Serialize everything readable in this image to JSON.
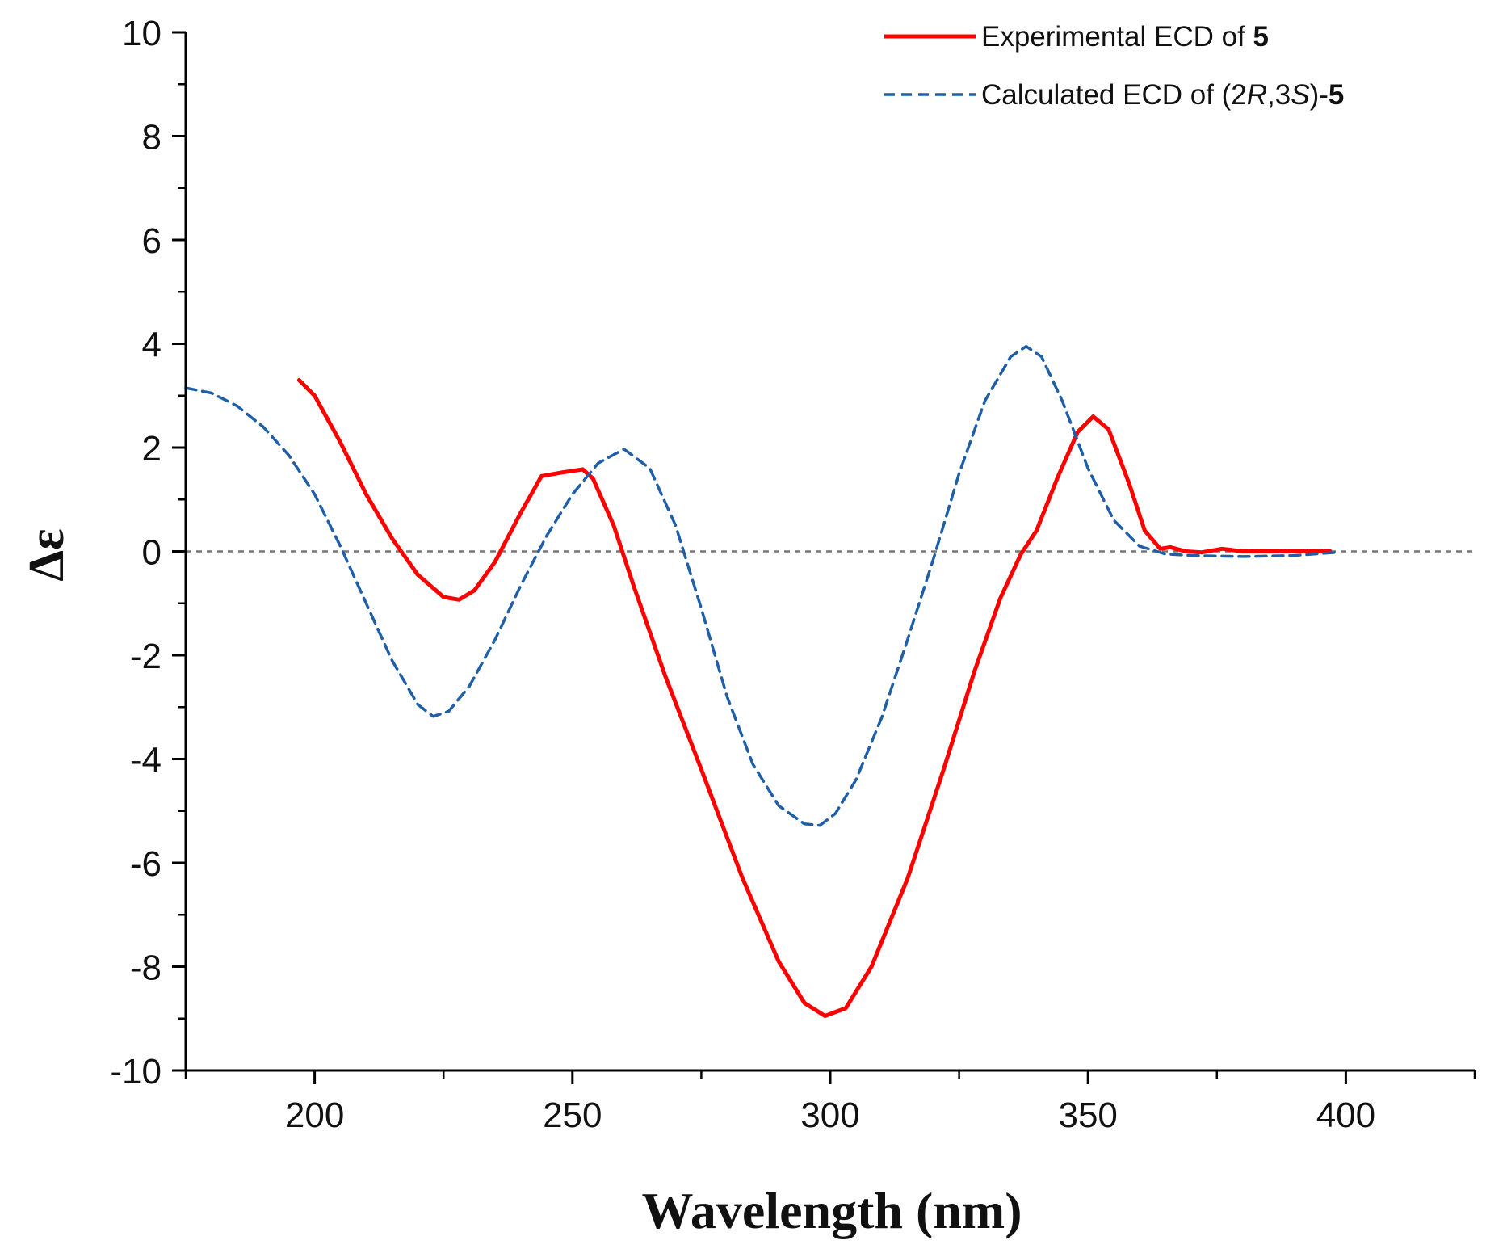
{
  "chart_data": {
    "type": "line",
    "title": "",
    "xlabel": "Wavelength (nm)",
    "ylabel": "Δε",
    "xlim": [
      175,
      425
    ],
    "ylim": [
      -10,
      10
    ],
    "x_major_ticks": [
      200,
      250,
      300,
      350,
      400
    ],
    "y_major_ticks": [
      -10,
      -8,
      -6,
      -4,
      -2,
      0,
      2,
      4,
      6,
      8,
      10
    ],
    "zero_reference_line": {
      "value": 0,
      "style": "dashed",
      "color": "#777777"
    },
    "legend": {
      "position": "top-right",
      "entries": [
        {
          "series": 0,
          "text": "Experimental ECD of ",
          "bold": "5"
        },
        {
          "series": 1,
          "text_parts": [
            {
              "t": "Calculated ECD of (2",
              "s": "normal"
            },
            {
              "t": "R",
              "s": "italic"
            },
            {
              "t": ",3",
              "s": "normal"
            },
            {
              "t": "S",
              "s": "italic"
            },
            {
              "t": ")-",
              "s": "normal"
            },
            {
              "t": "5",
              "s": "bold"
            }
          ]
        }
      ]
    },
    "series": [
      {
        "name": "Experimental ECD of 5",
        "color": "#ff0000",
        "style": "solid",
        "points": [
          [
            197,
            3.3
          ],
          [
            200,
            3.0
          ],
          [
            205,
            2.1
          ],
          [
            210,
            1.1
          ],
          [
            215,
            0.25
          ],
          [
            220,
            -0.45
          ],
          [
            225,
            -0.88
          ],
          [
            228,
            -0.93
          ],
          [
            231,
            -0.75
          ],
          [
            235,
            -0.2
          ],
          [
            240,
            0.75
          ],
          [
            244,
            1.45
          ],
          [
            248,
            1.52
          ],
          [
            252,
            1.58
          ],
          [
            254,
            1.4
          ],
          [
            258,
            0.5
          ],
          [
            262,
            -0.7
          ],
          [
            268,
            -2.4
          ],
          [
            275,
            -4.2
          ],
          [
            283,
            -6.3
          ],
          [
            290,
            -7.9
          ],
          [
            295,
            -8.7
          ],
          [
            299,
            -8.95
          ],
          [
            303,
            -8.8
          ],
          [
            308,
            -8.0
          ],
          [
            315,
            -6.3
          ],
          [
            322,
            -4.2
          ],
          [
            328,
            -2.3
          ],
          [
            333,
            -0.9
          ],
          [
            337,
            -0.05
          ],
          [
            340,
            0.4
          ],
          [
            344,
            1.4
          ],
          [
            348,
            2.3
          ],
          [
            351,
            2.6
          ],
          [
            354,
            2.35
          ],
          [
            358,
            1.3
          ],
          [
            361,
            0.4
          ],
          [
            364,
            0.05
          ],
          [
            366,
            0.08
          ],
          [
            369,
            0.0
          ],
          [
            372,
            -0.02
          ],
          [
            376,
            0.05
          ],
          [
            380,
            0.0
          ],
          [
            390,
            0.0
          ],
          [
            397,
            0.0
          ]
        ]
      },
      {
        "name": "Calculated ECD of (2R,3S)-5",
        "color": "#1f5fa8",
        "style": "dashed",
        "points": [
          [
            175,
            3.15
          ],
          [
            180,
            3.05
          ],
          [
            185,
            2.8
          ],
          [
            190,
            2.4
          ],
          [
            195,
            1.85
          ],
          [
            200,
            1.1
          ],
          [
            205,
            0.1
          ],
          [
            210,
            -1.0
          ],
          [
            215,
            -2.1
          ],
          [
            220,
            -2.95
          ],
          [
            223,
            -3.18
          ],
          [
            226,
            -3.08
          ],
          [
            230,
            -2.6
          ],
          [
            235,
            -1.7
          ],
          [
            240,
            -0.65
          ],
          [
            245,
            0.3
          ],
          [
            250,
            1.1
          ],
          [
            255,
            1.7
          ],
          [
            260,
            1.97
          ],
          [
            265,
            1.6
          ],
          [
            270,
            0.5
          ],
          [
            275,
            -1.1
          ],
          [
            280,
            -2.8
          ],
          [
            285,
            -4.1
          ],
          [
            290,
            -4.9
          ],
          [
            295,
            -5.25
          ],
          [
            298,
            -5.28
          ],
          [
            301,
            -5.05
          ],
          [
            305,
            -4.4
          ],
          [
            310,
            -3.2
          ],
          [
            315,
            -1.7
          ],
          [
            320,
            -0.15
          ],
          [
            325,
            1.5
          ],
          [
            330,
            2.9
          ],
          [
            335,
            3.75
          ],
          [
            338,
            3.95
          ],
          [
            341,
            3.75
          ],
          [
            345,
            2.9
          ],
          [
            350,
            1.6
          ],
          [
            355,
            0.6
          ],
          [
            360,
            0.1
          ],
          [
            365,
            -0.05
          ],
          [
            370,
            -0.08
          ],
          [
            380,
            -0.1
          ],
          [
            390,
            -0.08
          ],
          [
            398,
            -0.02
          ]
        ]
      }
    ]
  }
}
